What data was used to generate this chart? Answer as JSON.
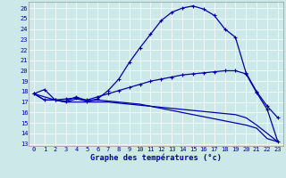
{
  "xlabel": "Graphe des températures (°c)",
  "background_color": "#cce8e8",
  "line_color": "#0000aa",
  "xlim": [
    -0.5,
    23.5
  ],
  "ylim": [
    12.8,
    26.6
  ],
  "xticks": [
    0,
    1,
    2,
    3,
    4,
    5,
    6,
    7,
    8,
    9,
    10,
    11,
    12,
    13,
    14,
    15,
    16,
    17,
    18,
    19,
    20,
    21,
    22,
    23
  ],
  "yticks": [
    13,
    14,
    15,
    16,
    17,
    18,
    19,
    20,
    21,
    22,
    23,
    24,
    25,
    26
  ],
  "curve1_x": [
    0,
    1,
    2,
    3,
    4,
    5,
    6,
    7,
    8,
    9,
    10,
    11,
    12,
    13,
    14,
    15,
    16,
    17,
    18,
    19,
    20,
    21,
    22,
    23
  ],
  "curve1_y": [
    17.8,
    18.2,
    17.2,
    17.1,
    17.5,
    17.1,
    17.3,
    18.1,
    19.2,
    20.8,
    22.2,
    23.5,
    24.8,
    25.6,
    26.0,
    26.2,
    25.9,
    25.3,
    24.0,
    23.2,
    19.8,
    18.0,
    16.6,
    15.5
  ],
  "curve2_x": [
    0,
    1,
    2,
    3,
    4,
    5,
    6,
    7,
    8,
    9,
    10,
    11,
    12,
    13,
    14,
    15,
    16,
    17,
    18,
    19,
    20,
    21,
    22,
    23
  ],
  "curve2_y": [
    17.8,
    17.2,
    17.2,
    17.3,
    17.4,
    17.2,
    17.5,
    17.8,
    18.1,
    18.4,
    18.7,
    19.0,
    19.2,
    19.4,
    19.6,
    19.7,
    19.8,
    19.9,
    20.0,
    20.0,
    19.7,
    17.9,
    16.3,
    13.2
  ],
  "curve3_x": [
    0,
    2,
    3,
    4,
    5,
    6,
    7,
    8,
    9,
    10,
    11,
    12,
    13,
    14,
    15,
    16,
    17,
    18,
    19,
    20,
    21,
    22,
    23
  ],
  "curve3_y": [
    17.8,
    17.2,
    17.0,
    17.3,
    17.1,
    17.2,
    17.1,
    17.0,
    16.9,
    16.8,
    16.6,
    16.4,
    16.2,
    16.0,
    15.8,
    15.6,
    15.4,
    15.2,
    15.0,
    14.8,
    14.5,
    13.5,
    13.2
  ],
  "curve4_x": [
    0,
    1,
    2,
    3,
    4,
    5,
    6,
    7,
    8,
    9,
    10,
    11,
    12,
    13,
    14,
    15,
    16,
    17,
    18,
    19,
    20,
    21,
    22,
    23
  ],
  "curve4_y": [
    17.8,
    17.2,
    17.2,
    17.0,
    17.0,
    17.0,
    17.0,
    17.0,
    16.9,
    16.8,
    16.7,
    16.6,
    16.5,
    16.4,
    16.3,
    16.2,
    16.1,
    16.0,
    15.9,
    15.8,
    15.5,
    14.8,
    14.0,
    13.2
  ],
  "tick_fontsize": 5.0,
  "xlabel_fontsize": 6.2
}
